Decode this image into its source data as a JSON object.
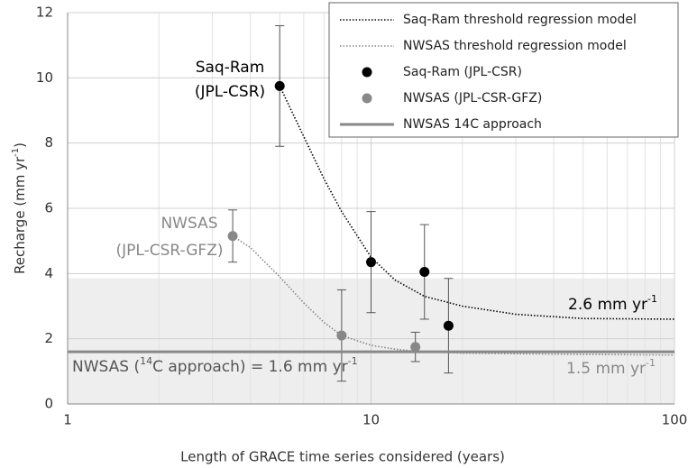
{
  "chart_data": {
    "type": "line",
    "x_label": "Length of GRACE time series considered (years)",
    "y_label": [
      "Recharge (mm yr",
      "-1",
      ")"
    ],
    "xlim": [
      1,
      100
    ],
    "xticks": [
      1,
      10,
      100
    ],
    "x_log": true,
    "xminorticks": [
      2,
      3,
      4,
      5,
      6,
      7,
      8,
      9,
      20,
      30,
      40,
      50,
      60,
      70,
      80,
      90
    ],
    "ylim": [
      0,
      12
    ],
    "yticks": [
      0,
      2,
      4,
      6,
      8,
      10,
      12
    ],
    "grid": true,
    "shaded_band": [
      0,
      3.85
    ],
    "band_color": "#eeeeee",
    "legend": "upper right",
    "series": [
      {
        "name": "Saq-Ram threshold regression model",
        "color": "#000000",
        "style": "dotted",
        "x": [
          5,
          6,
          7,
          8,
          10,
          12,
          15,
          20,
          30,
          50,
          100
        ],
        "values": [
          9.75,
          8.2,
          6.9,
          5.9,
          4.5,
          3.8,
          3.3,
          3.0,
          2.75,
          2.62,
          2.6
        ]
      },
      {
        "name": "NWSAS threshold regression model",
        "color": "#888888",
        "style": "dotted",
        "x": [
          3.5,
          4,
          5,
          6,
          7,
          8,
          10,
          12,
          14,
          20,
          50,
          100
        ],
        "values": [
          5.15,
          4.8,
          3.9,
          3.1,
          2.5,
          2.1,
          1.8,
          1.68,
          1.62,
          1.56,
          1.52,
          1.5
        ]
      },
      {
        "name": "Saq-Ram (JPL-CSR)",
        "color": "#000000",
        "style": "points",
        "x": [
          5,
          10,
          15,
          18
        ],
        "values": [
          9.75,
          4.35,
          4.05,
          2.4
        ],
        "errors": [
          1.85,
          1.55,
          1.45,
          1.45
        ]
      },
      {
        "name": "NWSAS (JPL-CSR-GFZ)",
        "color": "#888888",
        "style": "points",
        "x": [
          3.5,
          8,
          14
        ],
        "values": [
          5.15,
          2.1,
          1.75
        ],
        "errors": [
          0.8,
          1.4,
          0.45
        ]
      },
      {
        "name": "NWSAS 14C approach",
        "color": "#888888",
        "style": "hline",
        "values": [
          1.6
        ]
      }
    ],
    "annotations": [
      {
        "parts": [
          "Saq-Ram"
        ],
        "color": "#000000"
      },
      {
        "parts": [
          "(JPL-CSR)"
        ],
        "color": "#000000"
      },
      {
        "parts": [
          "NWSAS"
        ],
        "color": "#888888"
      },
      {
        "parts": [
          "(JPL-CSR-GFZ)"
        ],
        "color": "#888888"
      },
      {
        "parts": [
          "NWSAS (",
          "14",
          "C approach) = 1.6 mm yr",
          "-1"
        ],
        "color": "#555555"
      },
      {
        "parts": [
          "2.6 mm yr",
          "-1"
        ],
        "color": "#000000"
      },
      {
        "parts": [
          "1.5 mm yr",
          "-1"
        ],
        "color": "#888888"
      }
    ]
  }
}
